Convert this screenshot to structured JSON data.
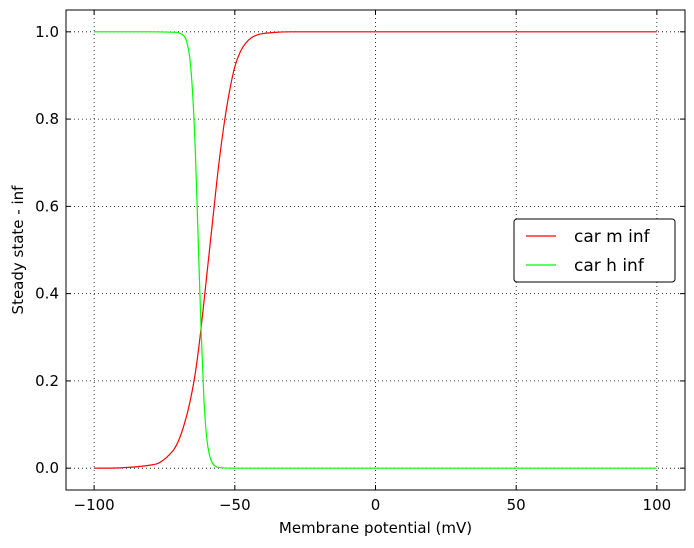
{
  "chart_data": {
    "type": "line",
    "title": "",
    "xlabel": "Membrane potential (mV)",
    "ylabel": "Steady state - inf",
    "xlim": [
      -110,
      110
    ],
    "ylim": [
      -0.05,
      1.05
    ],
    "xticks": [
      -100,
      -50,
      0,
      50,
      100
    ],
    "xtick_labels": [
      "−100",
      "−50",
      "0",
      "50",
      "100"
    ],
    "yticks": [
      0.0,
      0.2,
      0.4,
      0.6,
      0.8,
      1.0
    ],
    "ytick_labels": [
      "0.0",
      "0.2",
      "0.4",
      "0.6",
      "0.8",
      "1.0"
    ],
    "grid": true,
    "legend_position": "center-right",
    "series": [
      {
        "name": "car m inf",
        "color": "#ff0000",
        "x": [
          -100,
          -90,
          -80,
          -76,
          -72,
          -70,
          -68,
          -66,
          -64,
          -62,
          -60,
          -58,
          -56,
          -54,
          -52,
          -50,
          -48,
          -46,
          -44,
          -42,
          -40,
          -35,
          -30,
          -20,
          0,
          50,
          100
        ],
        "y": [
          0.0,
          0.001,
          0.007,
          0.016,
          0.04,
          0.063,
          0.1,
          0.15,
          0.22,
          0.32,
          0.44,
          0.56,
          0.68,
          0.78,
          0.86,
          0.92,
          0.955,
          0.975,
          0.987,
          0.993,
          0.996,
          0.999,
          1.0,
          1.0,
          1.0,
          1.0,
          1.0
        ]
      },
      {
        "name": "car h inf",
        "color": "#00ff00",
        "x": [
          -100,
          -80,
          -72,
          -70,
          -68,
          -67,
          -66,
          -65,
          -64,
          -63,
          -62,
          -61,
          -60,
          -59,
          -58,
          -57,
          -56,
          -54,
          -50,
          -40,
          0,
          50,
          100
        ],
        "y": [
          1.0,
          1.0,
          0.999,
          0.998,
          0.99,
          0.975,
          0.94,
          0.86,
          0.72,
          0.52,
          0.32,
          0.16,
          0.07,
          0.03,
          0.012,
          0.005,
          0.002,
          0.0005,
          0.0,
          0.0,
          0.0,
          0.0,
          0.0
        ]
      }
    ]
  }
}
